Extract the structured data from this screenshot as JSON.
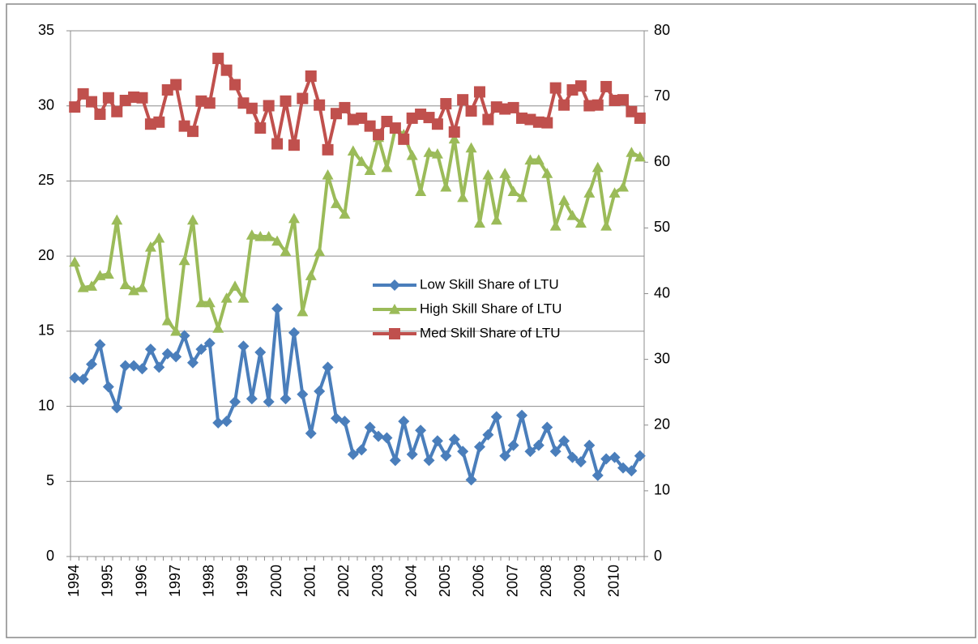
{
  "chart_data": {
    "type": "line",
    "categories": [
      "1994",
      null,
      null,
      null,
      "1995",
      null,
      null,
      null,
      "1996",
      null,
      null,
      null,
      "1997",
      null,
      null,
      null,
      "1998",
      null,
      null,
      null,
      "1999",
      null,
      null,
      null,
      "2000",
      null,
      null,
      null,
      "2001",
      null,
      null,
      null,
      "2002",
      null,
      null,
      null,
      "2003",
      null,
      null,
      null,
      "2004",
      null,
      null,
      null,
      "2005",
      null,
      null,
      null,
      "2006",
      null,
      null,
      null,
      "2007",
      null,
      null,
      null,
      "2008",
      null,
      null,
      null,
      "2009",
      null,
      null,
      null,
      "2010",
      null,
      null,
      null
    ],
    "series": [
      {
        "name": "Low Skill Share of LTU",
        "color": "#4a7ebb",
        "marker": "diamond",
        "values": [
          11.9,
          11.8,
          12.8,
          14.1,
          11.3,
          9.9,
          12.7,
          12.7,
          12.5,
          13.8,
          12.6,
          13.5,
          13.3,
          14.7,
          12.9,
          13.8,
          14.2,
          8.9,
          9.0,
          10.3,
          14.0,
          10.5,
          13.6,
          10.3,
          16.5,
          10.5,
          14.9,
          10.8,
          8.2,
          11.0,
          12.6,
          9.2,
          9.0,
          6.8,
          7.1,
          8.6,
          8.0,
          7.9,
          6.4,
          9.0,
          6.8,
          8.4,
          6.4,
          7.7,
          6.7,
          7.8,
          7.0,
          5.1,
          7.3,
          8.1,
          9.3,
          6.7,
          7.4,
          9.4,
          7.0,
          7.4,
          8.6,
          7.0,
          7.7,
          6.6,
          6.3,
          7.4,
          5.4,
          6.5,
          6.6,
          5.9,
          5.7,
          6.7
        ]
      },
      {
        "name": "High Skill Share of LTU",
        "color": "#9bbb59",
        "marker": "triangle",
        "values": [
          19.6,
          17.9,
          18.0,
          18.7,
          18.8,
          22.4,
          18.1,
          17.7,
          17.9,
          20.6,
          21.2,
          15.7,
          15.0,
          19.7,
          22.4,
          16.9,
          16.9,
          15.2,
          17.2,
          18.0,
          17.2,
          21.4,
          21.3,
          21.3,
          21.0,
          20.3,
          22.5,
          16.3,
          18.7,
          20.3,
          25.4,
          23.5,
          22.8,
          27.0,
          26.3,
          25.7,
          27.9,
          25.9,
          28.5,
          28.1,
          26.7,
          24.3,
          26.9,
          26.8,
          24.6,
          27.8,
          23.9,
          27.2,
          22.2,
          25.4,
          22.4,
          25.5,
          24.3,
          23.9,
          26.4,
          26.4,
          25.5,
          22.0,
          23.7,
          22.7,
          22.2,
          24.2,
          25.9,
          22.0,
          24.2,
          24.6,
          26.9,
          26.6
        ]
      },
      {
        "name": "Med Skill Share of LTU",
        "color": "#c0504d",
        "marker": "square",
        "axis": "y2",
        "values": [
          68.4,
          70.4,
          69.2,
          67.3,
          69.8,
          67.7,
          69.4,
          69.9,
          69.8,
          65.8,
          66.1,
          71.0,
          71.8,
          65.5,
          64.7,
          69.3,
          69.0,
          75.8,
          74.0,
          71.8,
          69.0,
          68.2,
          65.2,
          68.6,
          62.8,
          69.3,
          62.6,
          69.7,
          73.1,
          68.7,
          61.9,
          67.4,
          68.3,
          66.5,
          66.7,
          65.5,
          64.2,
          66.2,
          65.2,
          63.5,
          66.7,
          67.3,
          66.8,
          65.8,
          68.9,
          64.6,
          69.5,
          67.8,
          70.7,
          66.5,
          68.4,
          68.1,
          68.3,
          66.7,
          66.5,
          66.1,
          66.0,
          71.3,
          68.7,
          71.0,
          71.6,
          68.6,
          68.7,
          71.5,
          69.4,
          69.5,
          67.7,
          66.7
        ]
      }
    ],
    "ylim": [
      0,
      35
    ],
    "yticks": [
      0,
      5,
      10,
      15,
      20,
      25,
      30,
      35
    ],
    "y2lim": [
      0,
      80
    ],
    "y2ticks": [
      0,
      10,
      20,
      30,
      40,
      50,
      60,
      70,
      80
    ],
    "grid": true,
    "legend": "center"
  }
}
